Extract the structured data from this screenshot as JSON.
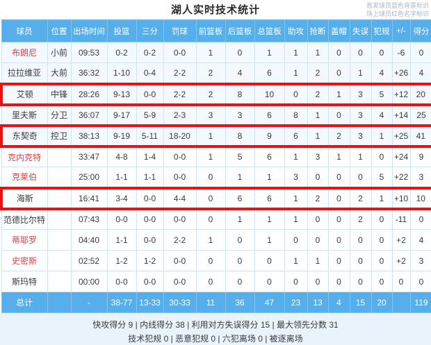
{
  "page": {
    "title": "湖人实时技术统计",
    "legend_line1": "首发球员蓝色背景标识",
    "legend_line2": "场上球员红色名字标识"
  },
  "table": {
    "columns": [
      "球员",
      "位置",
      "出场时间",
      "投篮",
      "三分",
      "罚球",
      "前篮板",
      "后篮板",
      "总篮板",
      "助攻",
      "抢断",
      "盖帽",
      "失误",
      "犯规",
      "+/-",
      "得分"
    ],
    "rows": [
      {
        "name": "布朗尼",
        "red_name": true,
        "highlighted": false,
        "starter": true,
        "cells": [
          "小前",
          "09:53",
          "0-2",
          "0-2",
          "0-0",
          "1",
          "0",
          "1",
          "1",
          "1",
          "0",
          "0",
          "0",
          "-6",
          "0"
        ]
      },
      {
        "name": "拉拉维亚",
        "red_name": false,
        "highlighted": false,
        "starter": true,
        "cells": [
          "大前",
          "36:32",
          "1-10",
          "0-4",
          "2-2",
          "2",
          "4",
          "6",
          "1",
          "2",
          "0",
          "1",
          "4",
          "+26",
          "4"
        ]
      },
      {
        "name": "艾顿",
        "red_name": false,
        "highlighted": true,
        "starter": true,
        "cells": [
          "中锋",
          "28:26",
          "9-13",
          "0-0",
          "2-2",
          "2",
          "8",
          "10",
          "0",
          "2",
          "1",
          "3",
          "5",
          "+12",
          "20"
        ]
      },
      {
        "name": "里夫斯",
        "red_name": false,
        "highlighted": false,
        "starter": true,
        "cells": [
          "分卫",
          "36:07",
          "9-17",
          "5-9",
          "2-3",
          "3",
          "3",
          "6",
          "8",
          "1",
          "0",
          "3",
          "4",
          "+14",
          "25"
        ]
      },
      {
        "name": "东契奇",
        "red_name": false,
        "highlighted": true,
        "starter": true,
        "cells": [
          "控卫",
          "38:13",
          "9-19",
          "5-11",
          "18-20",
          "1",
          "8",
          "9",
          "6",
          "1",
          "2",
          "3",
          "1",
          "+25",
          "41"
        ]
      },
      {
        "name": "克内克特",
        "red_name": true,
        "highlighted": false,
        "starter": false,
        "cells": [
          "",
          "33:47",
          "4-8",
          "1-4",
          "0-0",
          "1",
          "5",
          "6",
          "1",
          "3",
          "1",
          "1",
          "0",
          "+24",
          "9"
        ]
      },
      {
        "name": "克莱伯",
        "red_name": true,
        "highlighted": false,
        "starter": false,
        "cells": [
          "",
          "25:00",
          "1-1",
          "1-1",
          "0-0",
          "0",
          "1",
          "1",
          "3",
          "0",
          "0",
          "0",
          "5",
          "+22",
          "3"
        ]
      },
      {
        "name": "海斯",
        "red_name": false,
        "highlighted": true,
        "starter": false,
        "cells": [
          "",
          "16:41",
          "3-4",
          "0-0",
          "4-4",
          "0",
          "6",
          "6",
          "1",
          "2",
          "0",
          "2",
          "1",
          "+10",
          "10"
        ]
      },
      {
        "name": "范德比尔特",
        "red_name": false,
        "highlighted": false,
        "starter": false,
        "cells": [
          "",
          "07:43",
          "0-0",
          "0-0",
          "0-0",
          "0",
          "1",
          "1",
          "1",
          "0",
          "0",
          "2",
          "0",
          "-11",
          "0"
        ]
      },
      {
        "name": "蒂耶罗",
        "red_name": true,
        "highlighted": false,
        "starter": false,
        "cells": [
          "",
          "04:40",
          "1-1",
          "0-0",
          "2-2",
          "1",
          "0",
          "1",
          "0",
          "0",
          "0",
          "0",
          "0",
          "+2",
          "4"
        ]
      },
      {
        "name": "史密斯",
        "red_name": true,
        "highlighted": false,
        "starter": false,
        "cells": [
          "",
          "02:52",
          "1-2",
          "1-2",
          "0-0",
          "0",
          "0",
          "0",
          "1",
          "1",
          "0",
          "0",
          "0",
          "+2",
          "3"
        ]
      },
      {
        "name": "斯玛特",
        "red_name": false,
        "highlighted": false,
        "starter": false,
        "cells": [
          "",
          "00:00",
          "0-0",
          "0-0",
          "0-0",
          "0",
          "0",
          "0",
          "0",
          "0",
          "0",
          "0",
          "0",
          "0",
          "0"
        ]
      }
    ],
    "totals": {
      "label": "总计",
      "cells": [
        "",
        "-",
        "38-77",
        "13-33",
        "30-33",
        "11",
        "36",
        "47",
        "23",
        "13",
        "4",
        "15",
        "20",
        "",
        "119"
      ]
    }
  },
  "footer": {
    "line1": "快攻得分 9 | 内线得分 38 | 利用对方失误得分 15 | 最大领先分数 31",
    "line2": "技术犯规 0 | 恶意犯规 0 | 六犯离场 0 | 被逐离场"
  },
  "colors": {
    "accent_blue": "#56aeea",
    "highlight_red": "#ef0f0f",
    "red_name": "#e24040",
    "page_background": "#e9f3fb",
    "grid_border": "#cfe3f5"
  }
}
